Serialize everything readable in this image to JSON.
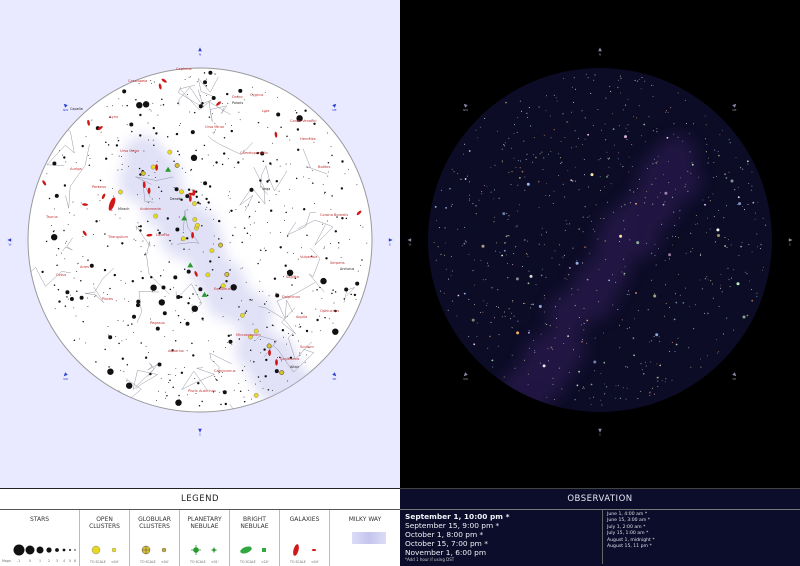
{
  "map": {
    "cardinal_labels_left": [
      "N",
      "NE",
      "E",
      "SE",
      "S",
      "SW",
      "W",
      "NW"
    ],
    "cardinal_labels_right": [
      "N",
      "NE",
      "E",
      "SE",
      "S",
      "SW",
      "W",
      "NW"
    ],
    "constellation_labels": [
      "Cassiopeia",
      "Cepheus",
      "Draco",
      "Ursa Minor",
      "Ursa Major",
      "Camelopardalis",
      "Perseus",
      "Andromeda",
      "Triangulum",
      "Aries",
      "Pisces",
      "Pegasus",
      "Cygnus",
      "Lyra",
      "Hercules",
      "Boötes",
      "Corona Borealis",
      "Vulpecula",
      "Sagitta",
      "Delphinus",
      "Aquila",
      "Aquarius",
      "Capricornus",
      "Sagittarius",
      "Scutum",
      "Ophiuchus",
      "Serpens",
      "Lacerta",
      "Auriga",
      "Lynx",
      "Canes Venatici",
      "Piscis Austrinus",
      "Equuleus",
      "Cetus",
      "Taurus",
      "Microscopium"
    ],
    "star_names": [
      "Polaris",
      "Vega",
      "Deneb",
      "Altair",
      "Capella",
      "Arcturus",
      "Mirach"
    ]
  },
  "legend": {
    "title": "LEGEND",
    "stars": {
      "heading": "STARS",
      "magn_label": "Magn.",
      "magnitudes": [
        "-1",
        "0",
        "1",
        "2",
        "3",
        "4",
        "5",
        "6"
      ]
    },
    "open_clusters": {
      "heading": "OPEN CLUSTERS",
      "to_scale": "TO SCALE",
      "size": "<04'"
    },
    "globular_clusters": {
      "heading": "GLOBULAR CLUSTERS",
      "to_scale": "TO SCALE",
      "size": "<04'"
    },
    "planetary_nebulae": {
      "heading": "PLANETARY NEBULAE",
      "to_scale": "TO SCALE",
      "size": "<01'"
    },
    "bright_nebulae": {
      "heading": "BRIGHT NEBULAE",
      "to_scale": "TO SCALE",
      "size": "<20'"
    },
    "galaxies": {
      "heading": "GALAXIES",
      "to_scale": "TO SCALE",
      "size": "<04'"
    },
    "milky_way": {
      "heading": "MILKY WAY"
    }
  },
  "observation": {
    "title": "OBSERVATION",
    "primary": "September 1, 10:00 pm *",
    "times": [
      "September 15, 9:00 pm *",
      "October 1, 8:00 pm *",
      "October 15, 7:00 pm *",
      "November 1, 6:00 pm"
    ],
    "note": "*Add 1 hour if using DST",
    "other_times": [
      "June 1, 4:00 am *",
      "June 15, 3:00 am *",
      "July 1, 2:00 am *",
      "July 15, 1:00 am *",
      "August 1, midnight *",
      "August 15, 11 pm *"
    ]
  },
  "colors": {
    "chart_bg": "#e9e9ff",
    "night_bg": "#000000",
    "night_disc": "#0c0c26",
    "milky_way": "#c8c8f0",
    "open_cluster": "#e8d820",
    "globular_cluster": "#d8c030",
    "planetary_nebula": "#2a9a30",
    "bright_nebula": "#30a840",
    "galaxy": "#d01818",
    "label_red": "#c03030",
    "obs_bg": "#0b0d2a"
  }
}
